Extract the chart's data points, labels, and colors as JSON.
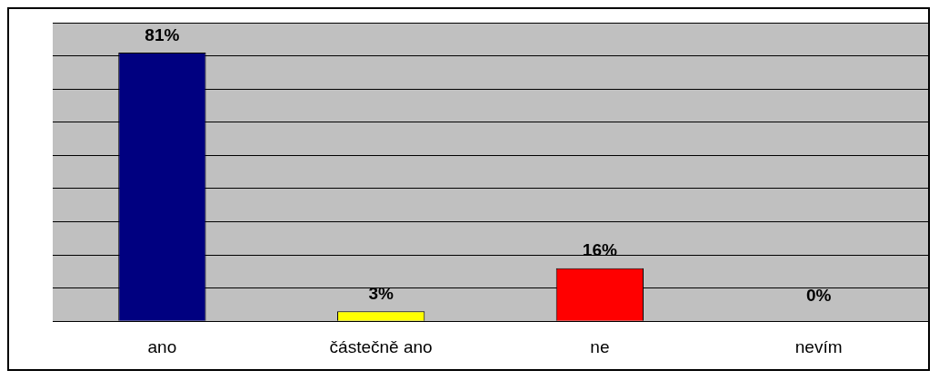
{
  "chart_data": {
    "type": "bar",
    "categories": [
      "ano",
      "částečně ano",
      "ne",
      "nevím"
    ],
    "values": [
      81,
      3,
      16,
      0
    ],
    "colors": [
      "#000080",
      "#ffff00",
      "#ff0000",
      "#808080"
    ],
    "tick_labels": "x",
    "grid": "y",
    "value_labels": [
      "81%",
      "3%",
      "16%",
      "0%"
    ],
    "legend": false
  }
}
